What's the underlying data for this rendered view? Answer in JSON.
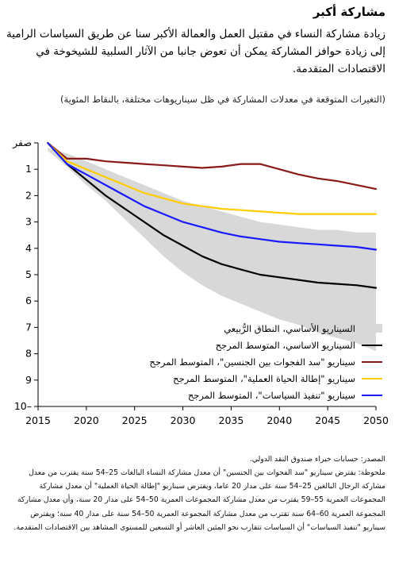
{
  "header": {
    "title": "مشاركة أكبر",
    "subtitle": "زيادة مشاركة النساء في مقتبل العمل والعمالة الأكبر سنا عن طريق السياسات الرامية إلى زيادة حوافز المشاركة يمكن أن تعوض جانبا من الآثار السلبية للشيخوخة في الاقتصادات المتقدمة.",
    "units": "(التغيرات المتوقعة في معدلات المشاركة في ظل سيناريوهات مختلفة، بالنقاط المئوية)"
  },
  "footer": {
    "source": "المصدر: حسابات خبراء صندوق النقد الدولي.",
    "note": "ملحوظة: يفترض سيناريو \"سد الفجوات بين الجنسين\" أن معدل مشاركة النساء البالغات 25–54 سنة يقترب من معدل مشاركة الرجال البالغين 25–54 سنة على مدار 20 عاما، ويفترض سيناريو \"إطالة الحياة العملية\" أن معدل مشاركة المجموعات العمرية 55–59 يقترب من معدل مشاركة المجموعات العمرية 50–54 على مدار 20 سنة، وأن معدل مشاركة المجموعة العمرية 60–64 سنة تقترب من معدل مشاركة المجموعة العمرية 50–54 سنة على مدار 40 سنة؛ ويفترض سيناريو \"تنفيذ السياسات\" أن السياسات تتقارب نحو المئين العاشر أو التسعين للمستوى المشاهد بين الاقتصادات المتقدمة."
  },
  "legend": {
    "items": [
      {
        "label": "السيناريو الأساسي، النطاق الرُّبيعي",
        "kind": "band",
        "color": "#d8d8d8"
      },
      {
        "label": "السيناريو الاساسي، المتوسط المرجح",
        "kind": "line",
        "color": "#000000"
      },
      {
        "label": "سيناريو \"سد الفجوات بين الجنسين\"، المتوسط المرجح",
        "kind": "line",
        "color": "#8b1a1a"
      },
      {
        "label": "سيناريو \"إطالة الحياة العملية\"، المتوسط المرجح",
        "kind": "line",
        "color": "#ffcc00"
      },
      {
        "label": "سيناريو \"تنفيذ السياسات\"، المتوسط المرجح",
        "kind": "line",
        "color": "#1a1aff"
      }
    ]
  },
  "chart_data": {
    "type": "line",
    "title": "",
    "xlabel": "",
    "ylabel": "",
    "xlim": [
      2015,
      2050
    ],
    "ylim": [
      -10,
      0
    ],
    "x_ticks": [
      2015,
      2020,
      2025,
      2030,
      2035,
      2040,
      2045,
      2050
    ],
    "x_tick_labels": [
      "2015",
      "2020",
      "2025",
      "2030",
      "2035",
      "2040",
      "2045",
      "2050"
    ],
    "y_ticks": [
      0,
      -1,
      -2,
      -3,
      -4,
      -5,
      -6,
      -7,
      -8,
      -9,
      -10
    ],
    "y_tick_labels": [
      "صفر",
      "1",
      "2",
      "3",
      "4",
      "5",
      "6",
      "7",
      "8",
      "9",
      "10–"
    ],
    "grid": false,
    "legend_position": "bottom-right",
    "band": {
      "name": "السيناريو الأساسي، النطاق الرُّبيعي",
      "color": "#d8d8d8",
      "x": [
        2016,
        2018,
        2020,
        2022,
        2024,
        2026,
        2028,
        2030,
        2032,
        2034,
        2036,
        2038,
        2040,
        2042,
        2044,
        2046,
        2048,
        2050
      ],
      "upper": [
        -0.2,
        -0.4,
        -0.7,
        -1.0,
        -1.3,
        -1.6,
        -1.9,
        -2.2,
        -2.4,
        -2.6,
        -2.8,
        -3.0,
        -3.1,
        -3.2,
        -3.3,
        -3.3,
        -3.4,
        -3.4
      ],
      "lower": [
        -0.3,
        -0.9,
        -1.6,
        -2.2,
        -2.9,
        -3.6,
        -4.3,
        -4.9,
        -5.4,
        -5.8,
        -6.1,
        -6.4,
        -6.7,
        -6.9,
        -7.2,
        -7.4,
        -7.6,
        -7.9
      ]
    },
    "x": [
      2016,
      2018,
      2020,
      2022,
      2024,
      2026,
      2028,
      2030,
      2032,
      2034,
      2036,
      2038,
      2040,
      2042,
      2044,
      2046,
      2048,
      2050
    ],
    "series": [
      {
        "name": "السيناريو الاساسي، المتوسط المرجح",
        "color": "#000000",
        "values": [
          0.0,
          -0.8,
          -1.4,
          -2.0,
          -2.5,
          -3.0,
          -3.5,
          -3.9,
          -4.3,
          -4.6,
          -4.8,
          -5.0,
          -5.1,
          -5.2,
          -5.3,
          -5.35,
          -5.4,
          -5.5
        ]
      },
      {
        "name": "سيناريو \"سد الفجوات بين الجنسين\"، المتوسط المرجح",
        "color": "#8b1a1a",
        "values": [
          0.0,
          -0.6,
          -0.6,
          -0.7,
          -0.75,
          -0.8,
          -0.85,
          -0.9,
          -0.95,
          -0.9,
          -0.8,
          -0.8,
          -1.0,
          -1.2,
          -1.35,
          -1.45,
          -1.6,
          -1.75
        ]
      },
      {
        "name": "سيناريو \"إطالة الحياة العملية\"، المتوسط المرجح",
        "color": "#ffcc00",
        "values": [
          0.0,
          -0.7,
          -1.0,
          -1.3,
          -1.6,
          -1.9,
          -2.1,
          -2.3,
          -2.4,
          -2.5,
          -2.55,
          -2.6,
          -2.65,
          -2.7,
          -2.7,
          -2.7,
          -2.7,
          -2.7
        ]
      },
      {
        "name": "سيناريو \"تنفيذ السياسات\"، المتوسط المرجح",
        "color": "#1a1aff",
        "values": [
          0.0,
          -0.8,
          -1.2,
          -1.6,
          -2.0,
          -2.4,
          -2.7,
          -3.0,
          -3.2,
          -3.4,
          -3.55,
          -3.65,
          -3.75,
          -3.8,
          -3.85,
          -3.9,
          -3.95,
          -4.05
        ]
      }
    ]
  }
}
